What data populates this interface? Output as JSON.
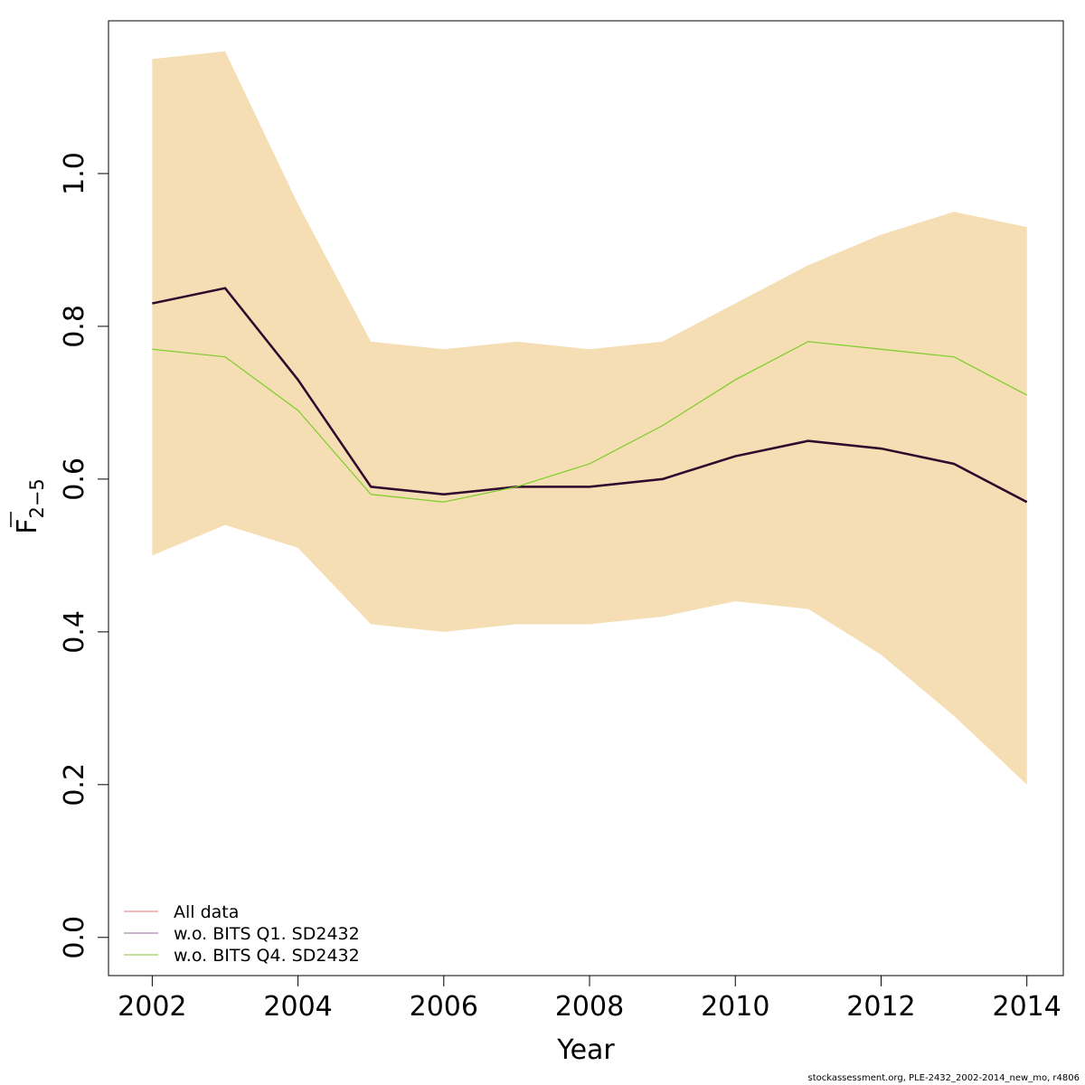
{
  "chart_data": {
    "type": "line",
    "xlabel": "Year",
    "ylabel_main": "F",
    "ylabel_sub": "2−5",
    "xlim": [
      2001.4,
      2014.5
    ],
    "ylim": [
      -0.05,
      1.2
    ],
    "x_ticks": [
      "2002",
      "2004",
      "2006",
      "2008",
      "2010",
      "2012",
      "2014"
    ],
    "y_ticks": [
      "0.0",
      "0.2",
      "0.4",
      "0.6",
      "0.8",
      "1.0"
    ],
    "x": [
      2002,
      2003,
      2004,
      2005,
      2006,
      2007,
      2008,
      2009,
      2010,
      2011,
      2012,
      2013,
      2014
    ],
    "band": {
      "color": "#f5deb3",
      "lower": [
        0.5,
        0.54,
        0.51,
        0.41,
        0.4,
        0.41,
        0.41,
        0.42,
        0.44,
        0.43,
        0.37,
        0.29,
        0.2
      ],
      "upper": [
        1.15,
        1.16,
        0.96,
        0.78,
        0.77,
        0.78,
        0.77,
        0.78,
        0.83,
        0.88,
        0.92,
        0.95,
        0.93
      ]
    },
    "series": [
      {
        "name": "All data",
        "color": "#f08080",
        "values": [
          0.83,
          0.85,
          0.73,
          0.59,
          0.58,
          0.59,
          0.59,
          0.6,
          0.63,
          0.65,
          0.64,
          0.62,
          0.57
        ]
      },
      {
        "name": "w.o. BITS Q1. SD2432",
        "color": "#2d0b2e",
        "values": [
          0.83,
          0.85,
          0.73,
          0.59,
          0.58,
          0.59,
          0.59,
          0.6,
          0.63,
          0.65,
          0.64,
          0.62,
          0.57
        ]
      },
      {
        "name": "w.o. BITS Q4. SD2432",
        "color": "#7ccd2a",
        "values": [
          0.77,
          0.76,
          0.69,
          0.58,
          0.57,
          0.59,
          0.62,
          0.67,
          0.73,
          0.78,
          0.77,
          0.76,
          0.71
        ]
      }
    ],
    "legend_colors": [
      "#f4a0a0",
      "#b79bc9",
      "#a6db70"
    ],
    "legend_position": "bottom-left",
    "grid": false
  },
  "footer": "stockassessment.org, PLE-2432_2002-2014_new_mo, r4806"
}
